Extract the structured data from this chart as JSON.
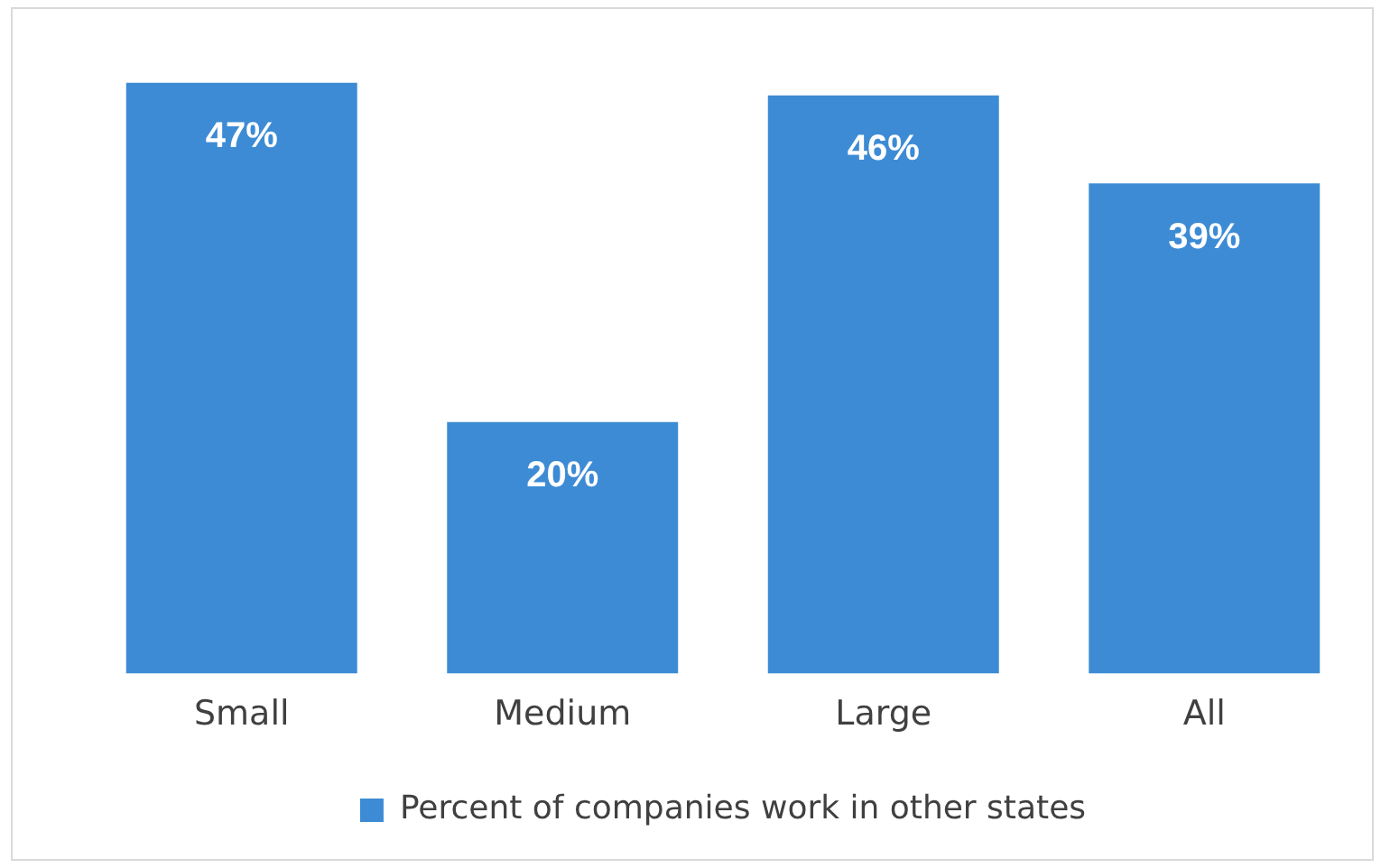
{
  "chart_data": {
    "type": "bar",
    "categories": [
      "Small",
      "Medium",
      "Large",
      "All"
    ],
    "series": [
      {
        "name": "Percent of companies work in other states",
        "color": "#3d8bd4",
        "values": [
          47,
          20,
          46,
          39
        ],
        "value_labels": [
          "47%",
          "20%",
          "46%",
          "39%"
        ]
      }
    ],
    "legend": "bottom",
    "grid": false
  }
}
